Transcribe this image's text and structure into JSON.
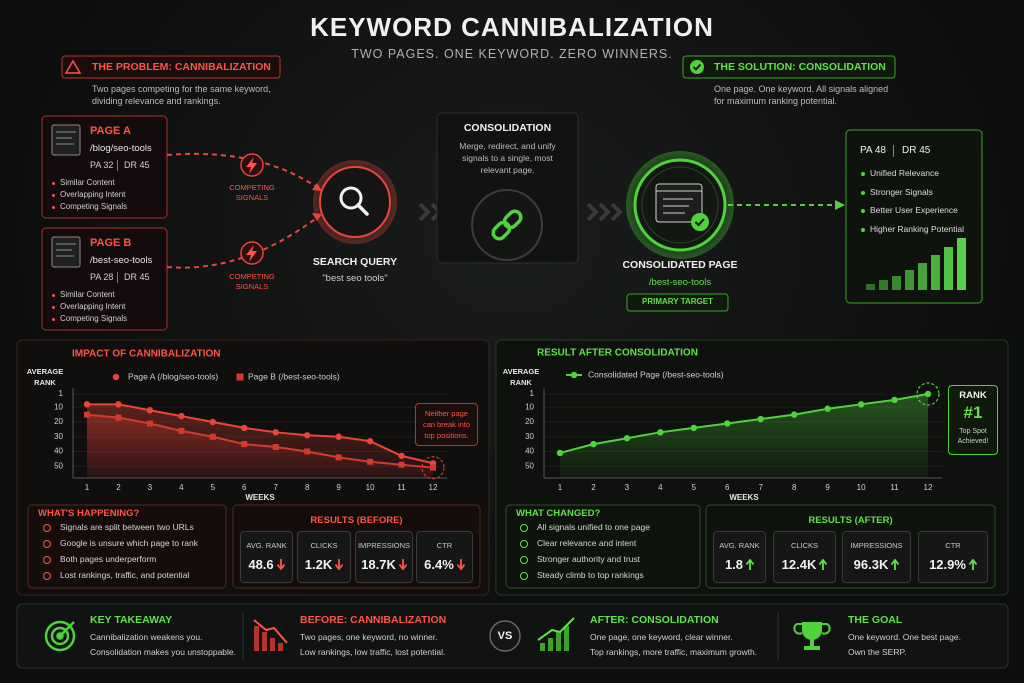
{
  "header": {
    "title": "KEYWORD CANNIBALIZATION",
    "subtitle": "TWO PAGES. ONE KEYWORD. ZERO WINNERS."
  },
  "problem": {
    "label": "THE PROBLEM: CANNIBALIZATION",
    "description": "Two pages competing for the same keyword, dividing relevance and rankings."
  },
  "solution": {
    "label": "THE SOLUTION: CONSOLIDATION",
    "description": "One page. One keyword. All signals aligned for maximum ranking potential."
  },
  "pages": [
    {
      "title": "PAGE A",
      "url": "/blog/seo-tools",
      "pa": "PA 32",
      "dr": "DR 45",
      "bullets": [
        "Similar Content",
        "Overlapping Intent",
        "Competing Signals"
      ]
    },
    {
      "title": "PAGE B",
      "url": "/best-seo-tools",
      "pa": "PA 28",
      "dr": "DR 45",
      "bullets": [
        "Similar Content",
        "Overlapping Intent",
        "Competing Signals"
      ]
    }
  ],
  "competing_signals": [
    "COMPETING SIGNALS",
    "COMPETING SIGNALS"
  ],
  "search": {
    "label": "SEARCH QUERY",
    "query": "\"best seo tools\""
  },
  "consolidation": {
    "title": "CONSOLIDATION",
    "description": "Merge, redirect, and unify signals to a single, most relevant page."
  },
  "consolidated_page": {
    "title": "CONSOLIDATED PAGE",
    "url": "/best-seo-tools",
    "badge": "PRIMARY TARGET"
  },
  "result_card": {
    "pa": "PA 48",
    "dr": "DR 45",
    "bullets": [
      "Unified Relevance",
      "Stronger Signals",
      "Better User Experience",
      "Higher Ranking Potential"
    ]
  },
  "chart_data": [
    {
      "type": "line",
      "title": "IMPACT OF CANNIBALIZATION",
      "y_label": "AVERAGE RANK",
      "x_label": "WEEKS",
      "categories": [
        "1",
        "2",
        "3",
        "4",
        "5",
        "6",
        "7",
        "8",
        "9",
        "10",
        "11",
        "12"
      ],
      "series": [
        {
          "name": "Page A (/blog/seo-tools)",
          "color": "#e8463b",
          "marker": "circle",
          "values": [
            8,
            8,
            12,
            16,
            20,
            24,
            27,
            29,
            30,
            33,
            43,
            48
          ]
        },
        {
          "name": "Page B (/best-seo-tools)",
          "color": "#d33a2f",
          "marker": "square",
          "values": [
            15,
            17,
            21,
            26,
            30,
            35,
            37,
            40,
            44,
            47,
            49,
            51
          ]
        }
      ],
      "ylim": [
        1,
        58
      ],
      "yticks": [
        1,
        10,
        20,
        30,
        40,
        50
      ],
      "y_inverted": true,
      "annotation": "Neither page can break into top positions."
    },
    {
      "type": "line",
      "title": "RESULT AFTER CONSOLIDATION",
      "y_label": "AVERAGE RANK",
      "x_label": "WEEKS",
      "categories": [
        "1",
        "2",
        "3",
        "4",
        "5",
        "6",
        "7",
        "8",
        "9",
        "10",
        "11",
        "12"
      ],
      "series": [
        {
          "name": "Consolidated Page (/best-seo-tools)",
          "color": "#4fd23c",
          "marker": "circle",
          "values": [
            41,
            35,
            31,
            27,
            24,
            21,
            18,
            15,
            11,
            8,
            5,
            1
          ]
        }
      ],
      "ylim": [
        1,
        58
      ],
      "yticks": [
        1,
        10,
        20,
        30,
        40,
        50
      ],
      "y_inverted": true,
      "badge": {
        "label": "RANK",
        "value": "#1",
        "text": "Top Spot Achieved!"
      }
    }
  ],
  "whats_happening": {
    "title": "WHAT'S HAPPENING?",
    "items": [
      "Signals are split between two URLs",
      "Google is unsure which page to rank",
      "Both pages underperform",
      "Lost rankings, traffic, and potential"
    ]
  },
  "results_before": {
    "title": "RESULTS (BEFORE)",
    "metrics": [
      {
        "label": "AVG. RANK",
        "value": "48.6"
      },
      {
        "label": "CLICKS",
        "value": "1.2K"
      },
      {
        "label": "IMPRESSIONS",
        "value": "18.7K"
      },
      {
        "label": "CTR",
        "value": "6.4%"
      }
    ]
  },
  "what_changed": {
    "title": "WHAT CHANGED?",
    "items": [
      "All signals unified to one page",
      "Clear relevance and intent",
      "Stronger authority and trust",
      "Steady climb to top rankings"
    ]
  },
  "results_after": {
    "title": "RESULTS (AFTER)",
    "metrics": [
      {
        "label": "AVG. RANK",
        "value": "1.8"
      },
      {
        "label": "CLICKS",
        "value": "12.4K"
      },
      {
        "label": "IMPRESSIONS",
        "value": "96.3K"
      },
      {
        "label": "CTR",
        "value": "12.9%"
      }
    ]
  },
  "footer": {
    "takeaway": {
      "title": "KEY TAKEAWAY",
      "lines": [
        "Cannibalization weakens you.",
        "Consolidation makes you unstoppable."
      ]
    },
    "before": {
      "title": "BEFORE: CANNIBALIZATION",
      "lines": [
        "Two pages, one keyword, no winner.",
        "Low rankings, low traffic, lost potential."
      ]
    },
    "vs": "VS",
    "after": {
      "title": "AFTER: CONSOLIDATION",
      "lines": [
        "One page, one keyword, clear winner.",
        "Top rankings, more traffic, maximum growth."
      ]
    },
    "goal": {
      "title": "THE GOAL",
      "lines": [
        "One keyword. One best page.",
        "Own the SERP."
      ]
    }
  }
}
